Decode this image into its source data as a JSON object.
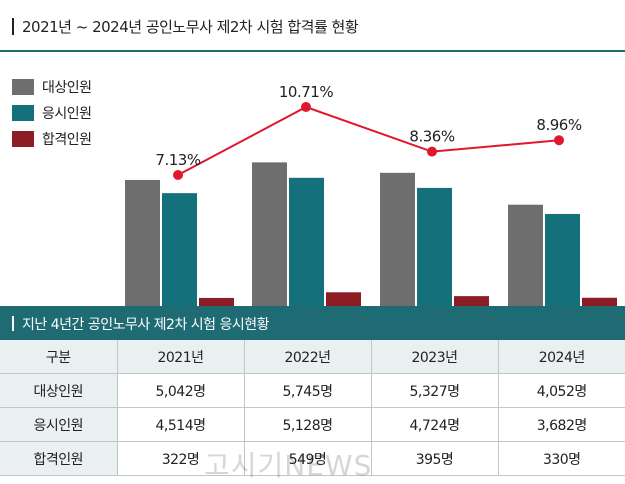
{
  "header": {
    "title": "2021년 ~ 2024년 공인노무사 제2차 시험 합격률 현황"
  },
  "legend": [
    {
      "label": "대상인원",
      "color": "#6e6e6e"
    },
    {
      "label": "응시인원",
      "color": "#14707b"
    },
    {
      "label": "합격인원",
      "color": "#8c1d24"
    }
  ],
  "chart_data": {
    "type": "bar",
    "title": "2021년 ~ 2024년 공인노무사 제2차 시험 합격률 현황",
    "categories": [
      "2021년",
      "2022년",
      "2023년",
      "2024년"
    ],
    "series": [
      {
        "name": "대상인원",
        "values": [
          5042,
          5745,
          5327,
          4052
        ],
        "color": "#6e6e6e"
      },
      {
        "name": "응시인원",
        "values": [
          4514,
          5128,
          4724,
          3682
        ],
        "color": "#14707b"
      },
      {
        "name": "합격인원",
        "values": [
          322,
          549,
          395,
          330
        ],
        "color": "#8c1d24"
      }
    ],
    "line": {
      "name": "합격률",
      "values": [
        7.13,
        10.71,
        8.36,
        8.96
      ],
      "labels": [
        "7.13%",
        "10.71%",
        "8.36%",
        "8.96%"
      ],
      "color": "#e0182d"
    },
    "ylim": [
      0,
      6000
    ]
  },
  "table": {
    "title": "지난 4년간 공인노무사 제2차 시험 응시현황",
    "header": [
      "구분",
      "2021년",
      "2022년",
      "2023년",
      "2024년"
    ],
    "rows": [
      [
        "대상인원",
        "5,042명",
        "5,745명",
        "5,327명",
        "4,052명"
      ],
      [
        "응시인원",
        "4,514명",
        "5,128명",
        "4,724명",
        "3,682명"
      ],
      [
        "합격인원",
        "322명",
        "549명",
        "395명",
        "330명"
      ]
    ]
  },
  "watermark": "고시기NEWS"
}
